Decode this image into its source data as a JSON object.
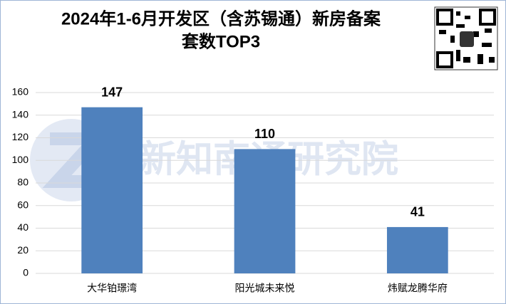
{
  "chart_data": {
    "type": "bar",
    "title": [
      "2024年1-6月开发区（含苏锡通）新房备案",
      "套数TOP3"
    ],
    "categories": [
      "大华铂璟湾",
      "阳光城未来悦",
      "炜赋龙腾华府"
    ],
    "values": [
      147,
      110,
      41
    ],
    "color": "#4f81bd",
    "ylim": [
      0,
      160
    ],
    "yticks": [
      0,
      20,
      40,
      60,
      80,
      100,
      120,
      140,
      160
    ],
    "grid": true,
    "watermark": "新知南通研究院"
  }
}
